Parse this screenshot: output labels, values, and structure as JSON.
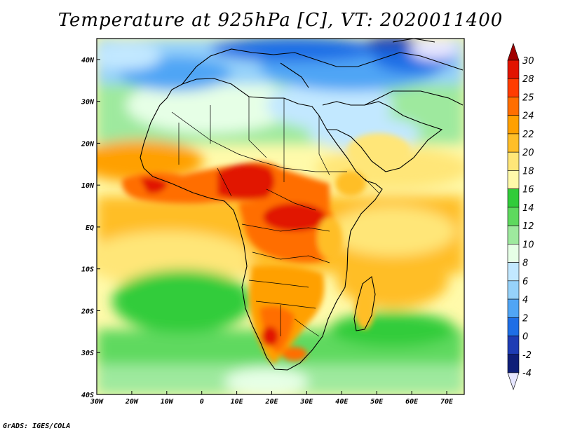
{
  "title": "Temperature at 925hPa [C], VT: 2020011400",
  "credit": "GrADS: IGES/COLA",
  "map": {
    "lon_range": [
      -30,
      75
    ],
    "lat_range": [
      -40,
      45
    ],
    "lon_ticks": [
      {
        "value": -30,
        "label": "30W"
      },
      {
        "value": -20,
        "label": "20W"
      },
      {
        "value": -10,
        "label": "10W"
      },
      {
        "value": 0,
        "label": "0"
      },
      {
        "value": 10,
        "label": "10E"
      },
      {
        "value": 20,
        "label": "20E"
      },
      {
        "value": 30,
        "label": "30E"
      },
      {
        "value": 40,
        "label": "40E"
      },
      {
        "value": 50,
        "label": "50E"
      },
      {
        "value": 60,
        "label": "60E"
      },
      {
        "value": 70,
        "label": "70E"
      }
    ],
    "lat_ticks": [
      {
        "value": 40,
        "label": "40N"
      },
      {
        "value": 30,
        "label": "30N"
      },
      {
        "value": 20,
        "label": "20N"
      },
      {
        "value": 10,
        "label": "10N"
      },
      {
        "value": 0,
        "label": "EQ"
      },
      {
        "value": -10,
        "label": "10S"
      },
      {
        "value": -20,
        "label": "20S"
      },
      {
        "value": -30,
        "label": "30S"
      },
      {
        "value": -40,
        "label": "40S"
      }
    ]
  },
  "colorbar": {
    "levels": [
      "30",
      "28",
      "25",
      "24",
      "22",
      "20",
      "18",
      "16",
      "14",
      "12",
      "10",
      "8",
      "6",
      "4",
      "2",
      "0",
      "-2",
      "-4"
    ],
    "colors_top_to_bottom": [
      "#a00000",
      "#e11400",
      "#ff3c00",
      "#ff6e00",
      "#ffa000",
      "#ffbe28",
      "#ffe678",
      "#fffaaa",
      "#31cc3a",
      "#5ed95e",
      "#9ee99e",
      "#e6ffe6",
      "#c2e8ff",
      "#96d2fa",
      "#50a5f5",
      "#1e6ee6",
      "#1e3cb4",
      "#0f1e78",
      "#e6e6ff"
    ]
  }
}
